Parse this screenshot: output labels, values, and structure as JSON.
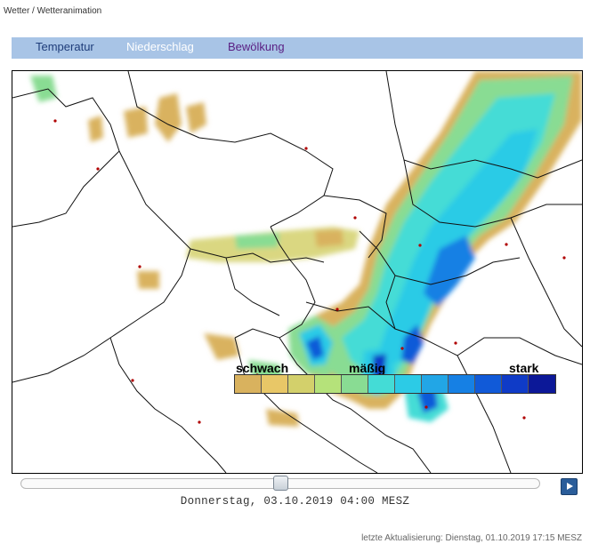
{
  "breadcrumb": "Wetter / Wetteranimation",
  "tabs": [
    "Temperatur",
    "Niederschlag",
    "Bewölkung"
  ],
  "legend": {
    "label_weak": "schwach",
    "label_medium": "mäßig",
    "label_strong": "stark",
    "colors": [
      "#d9b25e",
      "#e8c767",
      "#d3d06b",
      "#b5e27a",
      "#89dc93",
      "#44dcd6",
      "#2ccbe6",
      "#22a6e6",
      "#1680e4",
      "#115ad8",
      "#0f3bc7",
      "#0c1898"
    ]
  },
  "slider": {
    "position_fraction": 0.5
  },
  "timestamp": "Donnerstag, 03.10.2019 04:00 MESZ",
  "last_update": "letzte Aktualisierung: Dienstag, 01.10.2019 17:15 MESZ"
}
